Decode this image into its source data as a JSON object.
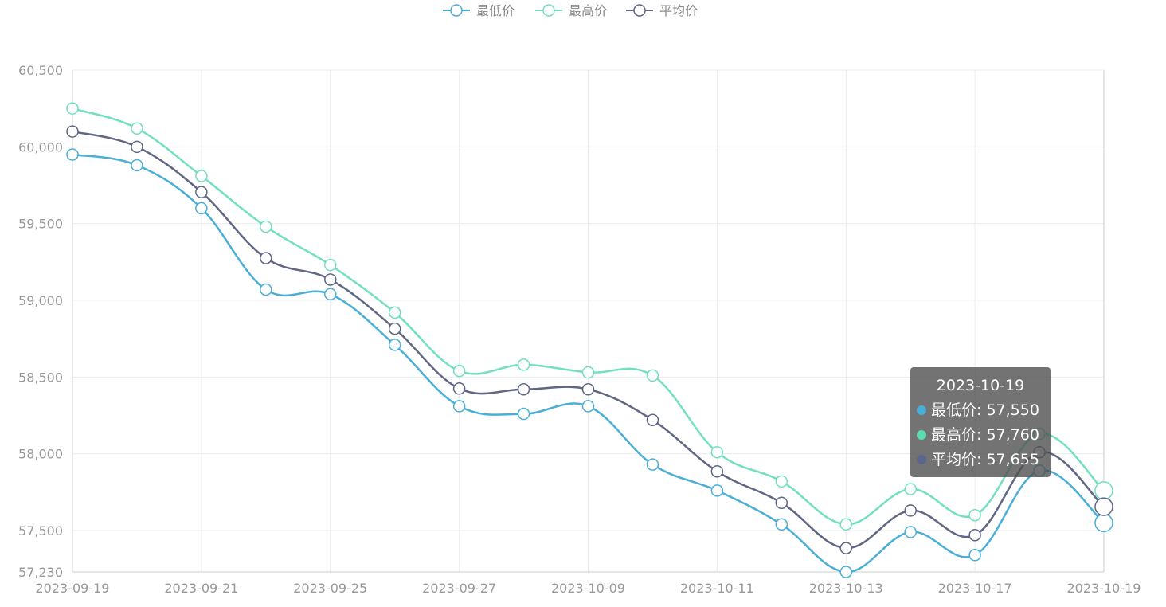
{
  "chart_data": {
    "type": "line",
    "smooth": true,
    "x": [
      "2023-09-19",
      "2023-09-20",
      "2023-09-21",
      "2023-09-22",
      "2023-09-25",
      "2023-09-26",
      "2023-09-27",
      "2023-09-28",
      "2023-10-09",
      "2023-10-10",
      "2023-10-11",
      "2023-10-12",
      "2023-10-13",
      "2023-10-16",
      "2023-10-17",
      "2023-10-18",
      "2023-10-19"
    ],
    "x_tick_labels": [
      "2023-09-19",
      "2023-09-21",
      "2023-09-25",
      "2023-09-27",
      "2023-10-09",
      "2023-10-11",
      "2023-10-13",
      "2023-10-17",
      "2023-10-19"
    ],
    "y_tick_labels": [
      "60,500",
      "60,000",
      "59,500",
      "59,000",
      "58,500",
      "58,000",
      "57,500",
      "57,230"
    ],
    "ylim": [
      57230,
      60500
    ],
    "grid": true,
    "legend_position": "top",
    "series": [
      {
        "name": "最低价",
        "color": "#4aaed6",
        "values": [
          59950,
          59880,
          59600,
          59070,
          59040,
          58710,
          58310,
          58260,
          58310,
          57930,
          57760,
          57540,
          57230,
          57490,
          57340,
          57890,
          57550
        ]
      },
      {
        "name": "最高价",
        "color": "#72dfc1",
        "values": [
          60250,
          60120,
          59810,
          59480,
          59230,
          58920,
          58540,
          58580,
          58530,
          58510,
          58010,
          57820,
          57540,
          57770,
          57600,
          58130,
          57760
        ]
      },
      {
        "name": "平均价",
        "color": "#5f6785",
        "values": [
          60100,
          60000,
          59705,
          59275,
          59135,
          58815,
          58425,
          58420,
          58420,
          58220,
          57885,
          57680,
          57385,
          57630,
          57470,
          58010,
          57655
        ]
      }
    ]
  },
  "tooltip": {
    "title": "2023-10-19",
    "rows": [
      {
        "label": "最低价: 57,550",
        "color": "#4aaed6"
      },
      {
        "label": "最高价: 57,760",
        "color": "#5bdcaf"
      },
      {
        "label": "平均价: 57,655",
        "color": "#5b6690"
      }
    ]
  }
}
